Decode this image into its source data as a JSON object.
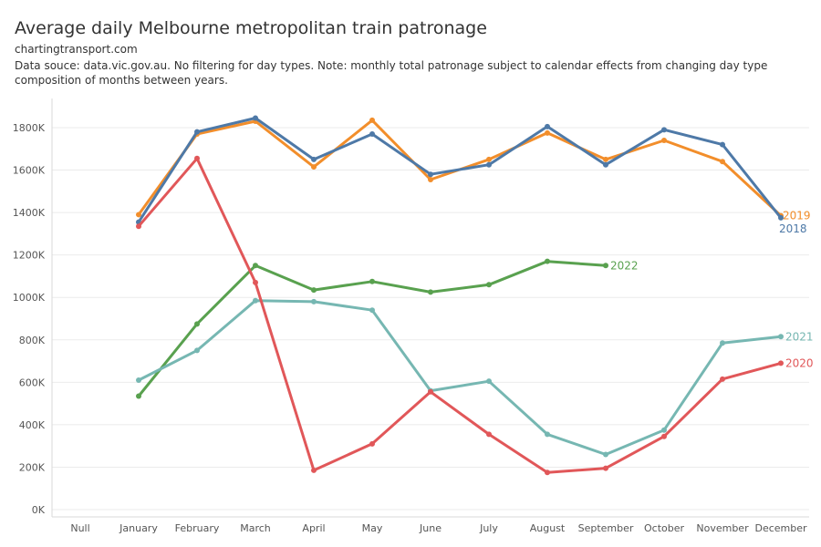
{
  "header": {
    "title": "Average daily Melbourne metropolitan train patronage",
    "source": "chartingtransport.com",
    "note": "Data souce: data.vic.gov.au. No filtering for day types. Note: monthly total patronage subject to calendar effects from changing day type composition of months between years."
  },
  "chart_data": {
    "type": "line",
    "title": "Average daily Melbourne metropolitan train patronage",
    "xlabel": "",
    "ylabel": "",
    "categories": [
      "Null",
      "January",
      "February",
      "March",
      "April",
      "May",
      "June",
      "July",
      "August",
      "September",
      "October",
      "November",
      "December"
    ],
    "ylim": [
      0,
      1900000
    ],
    "yticks": [
      0,
      200000,
      400000,
      600000,
      800000,
      1000000,
      1200000,
      1400000,
      1600000,
      1800000
    ],
    "ytick_labels": [
      "0K",
      "200K",
      "400K",
      "600K",
      "800K",
      "1000K",
      "1200K",
      "1400K",
      "1600K",
      "1800K"
    ],
    "grid": true,
    "legend": "inline labels at line ends",
    "series": [
      {
        "name": "2019",
        "color": "#f28e2b",
        "values": [
          null,
          1390000,
          1770000,
          1830000,
          1615000,
          1835000,
          1555000,
          1650000,
          1775000,
          1650000,
          1740000,
          1640000,
          1385000
        ]
      },
      {
        "name": "2018",
        "color": "#4e79a7",
        "values": [
          null,
          1355000,
          1780000,
          1845000,
          1650000,
          1770000,
          1580000,
          1625000,
          1805000,
          1625000,
          1790000,
          1720000,
          1375000
        ]
      },
      {
        "name": "2022",
        "color": "#59a14f",
        "values": [
          null,
          535000,
          875000,
          1150000,
          1035000,
          1075000,
          1025000,
          1060000,
          1170000,
          1150000,
          null,
          null,
          null
        ]
      },
      {
        "name": "2021",
        "color": "#76b7b2",
        "values": [
          null,
          610000,
          750000,
          985000,
          980000,
          940000,
          560000,
          605000,
          355000,
          260000,
          375000,
          785000,
          815000
        ]
      },
      {
        "name": "2020",
        "color": "#e15759",
        "values": [
          null,
          1335000,
          1655000,
          1070000,
          185000,
          310000,
          555000,
          355000,
          175000,
          195000,
          345000,
          615000,
          690000
        ]
      }
    ]
  }
}
